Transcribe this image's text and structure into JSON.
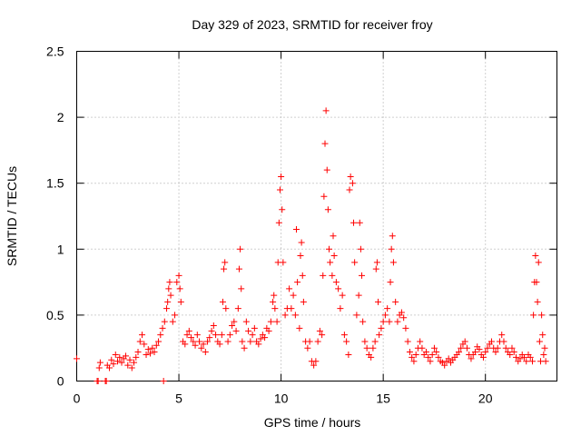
{
  "chart_data": {
    "type": "scatter",
    "title": "Day 329 of 2023, SRMTID for receiver froy",
    "xlabel": "GPS time / hours",
    "ylabel": "SRMTID / TECUs",
    "xlim": [
      0,
      23.5
    ],
    "ylim": [
      0,
      2.5
    ],
    "x_ticks": [
      0,
      5,
      10,
      15,
      20
    ],
    "x_tick_labels": [
      "0",
      "5",
      "10",
      "15",
      "20"
    ],
    "y_ticks": [
      0,
      0.5,
      1,
      1.5,
      2,
      2.5
    ],
    "y_tick_labels": [
      "0",
      "0.5",
      "1",
      "1.5",
      "2",
      "2.5"
    ],
    "grid": true,
    "marker": "+",
    "color": "#ff0000",
    "series": [
      {
        "name": "SRMTID",
        "points": [
          [
            0.0,
            0.17
          ],
          [
            1.0,
            0.0
          ],
          [
            1.05,
            0.0
          ],
          [
            1.1,
            0.1
          ],
          [
            1.15,
            0.14
          ],
          [
            1.4,
            0.0
          ],
          [
            1.45,
            0.0
          ],
          [
            1.5,
            0.12
          ],
          [
            1.6,
            0.1
          ],
          [
            1.7,
            0.16
          ],
          [
            1.8,
            0.13
          ],
          [
            1.9,
            0.2
          ],
          [
            2.0,
            0.15
          ],
          [
            2.1,
            0.18
          ],
          [
            2.2,
            0.14
          ],
          [
            2.3,
            0.17
          ],
          [
            2.4,
            0.19
          ],
          [
            2.5,
            0.12
          ],
          [
            2.6,
            0.16
          ],
          [
            2.7,
            0.1
          ],
          [
            2.8,
            0.14
          ],
          [
            2.9,
            0.18
          ],
          [
            3.0,
            0.22
          ],
          [
            3.1,
            0.3
          ],
          [
            3.2,
            0.35
          ],
          [
            3.3,
            0.28
          ],
          [
            3.4,
            0.2
          ],
          [
            3.5,
            0.24
          ],
          [
            3.6,
            0.21
          ],
          [
            3.7,
            0.25
          ],
          [
            3.8,
            0.22
          ],
          [
            3.9,
            0.27
          ],
          [
            4.0,
            0.3
          ],
          [
            4.1,
            0.35
          ],
          [
            4.2,
            0.4
          ],
          [
            4.25,
            0.0
          ],
          [
            4.3,
            0.45
          ],
          [
            4.4,
            0.55
          ],
          [
            4.45,
            0.6
          ],
          [
            4.5,
            0.7
          ],
          [
            4.55,
            0.75
          ],
          [
            4.6,
            0.65
          ],
          [
            4.7,
            0.45
          ],
          [
            4.8,
            0.5
          ],
          [
            4.9,
            0.75
          ],
          [
            5.0,
            0.8
          ],
          [
            5.05,
            0.7
          ],
          [
            5.1,
            0.6
          ],
          [
            5.2,
            0.3
          ],
          [
            5.3,
            0.28
          ],
          [
            5.4,
            0.35
          ],
          [
            5.5,
            0.38
          ],
          [
            5.6,
            0.33
          ],
          [
            5.7,
            0.3
          ],
          [
            5.8,
            0.27
          ],
          [
            5.9,
            0.35
          ],
          [
            6.0,
            0.3
          ],
          [
            6.1,
            0.25
          ],
          [
            6.2,
            0.28
          ],
          [
            6.3,
            0.22
          ],
          [
            6.4,
            0.3
          ],
          [
            6.5,
            0.33
          ],
          [
            6.6,
            0.38
          ],
          [
            6.7,
            0.42
          ],
          [
            6.8,
            0.35
          ],
          [
            6.9,
            0.3
          ],
          [
            7.0,
            0.28
          ],
          [
            7.1,
            0.35
          ],
          [
            7.15,
            0.6
          ],
          [
            7.2,
            0.85
          ],
          [
            7.25,
            0.9
          ],
          [
            7.3,
            0.55
          ],
          [
            7.4,
            0.3
          ],
          [
            7.5,
            0.35
          ],
          [
            7.6,
            0.42
          ],
          [
            7.7,
            0.45
          ],
          [
            7.8,
            0.38
          ],
          [
            7.9,
            0.55
          ],
          [
            7.95,
            0.85
          ],
          [
            8.0,
            1.0
          ],
          [
            8.05,
            0.7
          ],
          [
            8.1,
            0.3
          ],
          [
            8.2,
            0.25
          ],
          [
            8.3,
            0.45
          ],
          [
            8.4,
            0.38
          ],
          [
            8.5,
            0.3
          ],
          [
            8.6,
            0.35
          ],
          [
            8.7,
            0.4
          ],
          [
            8.8,
            0.3
          ],
          [
            8.9,
            0.28
          ],
          [
            9.0,
            0.32
          ],
          [
            9.1,
            0.35
          ],
          [
            9.2,
            0.33
          ],
          [
            9.3,
            0.4
          ],
          [
            9.4,
            0.38
          ],
          [
            9.5,
            0.45
          ],
          [
            9.6,
            0.6
          ],
          [
            9.65,
            0.65
          ],
          [
            9.7,
            0.55
          ],
          [
            9.8,
            0.45
          ],
          [
            9.85,
            0.9
          ],
          [
            9.9,
            1.2
          ],
          [
            9.95,
            1.45
          ],
          [
            10.0,
            1.55
          ],
          [
            10.05,
            1.3
          ],
          [
            10.1,
            0.9
          ],
          [
            10.2,
            0.5
          ],
          [
            10.3,
            0.55
          ],
          [
            10.4,
            0.7
          ],
          [
            10.5,
            0.55
          ],
          [
            10.6,
            0.65
          ],
          [
            10.7,
            0.5
          ],
          [
            10.75,
            1.15
          ],
          [
            10.8,
            0.75
          ],
          [
            10.9,
            0.4
          ],
          [
            10.95,
            0.95
          ],
          [
            11.0,
            1.05
          ],
          [
            11.05,
            0.8
          ],
          [
            11.1,
            0.6
          ],
          [
            11.2,
            0.3
          ],
          [
            11.3,
            0.25
          ],
          [
            11.4,
            0.3
          ],
          [
            11.5,
            0.15
          ],
          [
            11.6,
            0.12
          ],
          [
            11.7,
            0.15
          ],
          [
            11.8,
            0.3
          ],
          [
            11.9,
            0.38
          ],
          [
            12.0,
            0.35
          ],
          [
            12.05,
            0.8
          ],
          [
            12.1,
            1.4
          ],
          [
            12.15,
            1.8
          ],
          [
            12.2,
            2.05
          ],
          [
            12.25,
            1.6
          ],
          [
            12.3,
            1.3
          ],
          [
            12.35,
            1.0
          ],
          [
            12.4,
            0.9
          ],
          [
            12.5,
            0.8
          ],
          [
            12.55,
            1.1
          ],
          [
            12.6,
            0.95
          ],
          [
            12.7,
            0.75
          ],
          [
            12.8,
            0.7
          ],
          [
            12.9,
            0.55
          ],
          [
            13.0,
            0.65
          ],
          [
            13.1,
            0.35
          ],
          [
            13.2,
            0.3
          ],
          [
            13.3,
            0.2
          ],
          [
            13.35,
            1.45
          ],
          [
            13.4,
            1.55
          ],
          [
            13.5,
            1.5
          ],
          [
            13.55,
            1.2
          ],
          [
            13.6,
            0.9
          ],
          [
            13.7,
            0.5
          ],
          [
            13.8,
            0.65
          ],
          [
            13.85,
            1.2
          ],
          [
            13.9,
            1.0
          ],
          [
            13.95,
            0.8
          ],
          [
            14.0,
            0.45
          ],
          [
            14.1,
            0.3
          ],
          [
            14.2,
            0.25
          ],
          [
            14.3,
            0.2
          ],
          [
            14.4,
            0.18
          ],
          [
            14.5,
            0.25
          ],
          [
            14.6,
            0.3
          ],
          [
            14.65,
            0.85
          ],
          [
            14.7,
            0.9
          ],
          [
            14.75,
            0.6
          ],
          [
            14.8,
            0.35
          ],
          [
            14.9,
            0.4
          ],
          [
            15.0,
            0.45
          ],
          [
            15.1,
            0.5
          ],
          [
            15.2,
            0.55
          ],
          [
            15.3,
            0.45
          ],
          [
            15.35,
            0.75
          ],
          [
            15.4,
            1.0
          ],
          [
            15.45,
            1.1
          ],
          [
            15.5,
            0.9
          ],
          [
            15.6,
            0.6
          ],
          [
            15.7,
            0.45
          ],
          [
            15.8,
            0.5
          ],
          [
            15.9,
            0.52
          ],
          [
            16.0,
            0.48
          ],
          [
            16.1,
            0.4
          ],
          [
            16.2,
            0.3
          ],
          [
            16.3,
            0.22
          ],
          [
            16.4,
            0.18
          ],
          [
            16.5,
            0.15
          ],
          [
            16.6,
            0.2
          ],
          [
            16.7,
            0.25
          ],
          [
            16.8,
            0.3
          ],
          [
            16.9,
            0.25
          ],
          [
            17.0,
            0.2
          ],
          [
            17.1,
            0.22
          ],
          [
            17.2,
            0.18
          ],
          [
            17.3,
            0.15
          ],
          [
            17.4,
            0.2
          ],
          [
            17.5,
            0.25
          ],
          [
            17.6,
            0.22
          ],
          [
            17.7,
            0.18
          ],
          [
            17.8,
            0.15
          ],
          [
            17.9,
            0.14
          ],
          [
            18.0,
            0.12
          ],
          [
            18.1,
            0.15
          ],
          [
            18.2,
            0.17
          ],
          [
            18.3,
            0.14
          ],
          [
            18.4,
            0.16
          ],
          [
            18.5,
            0.18
          ],
          [
            18.6,
            0.2
          ],
          [
            18.7,
            0.22
          ],
          [
            18.8,
            0.25
          ],
          [
            18.9,
            0.28
          ],
          [
            19.0,
            0.3
          ],
          [
            19.1,
            0.25
          ],
          [
            19.2,
            0.2
          ],
          [
            19.3,
            0.17
          ],
          [
            19.4,
            0.2
          ],
          [
            19.5,
            0.22
          ],
          [
            19.6,
            0.26
          ],
          [
            19.7,
            0.24
          ],
          [
            19.8,
            0.2
          ],
          [
            19.9,
            0.18
          ],
          [
            20.0,
            0.22
          ],
          [
            20.1,
            0.25
          ],
          [
            20.2,
            0.28
          ],
          [
            20.3,
            0.3
          ],
          [
            20.4,
            0.25
          ],
          [
            20.5,
            0.22
          ],
          [
            20.6,
            0.25
          ],
          [
            20.7,
            0.3
          ],
          [
            20.8,
            0.35
          ],
          [
            20.9,
            0.3
          ],
          [
            21.0,
            0.25
          ],
          [
            21.1,
            0.22
          ],
          [
            21.2,
            0.2
          ],
          [
            21.3,
            0.25
          ],
          [
            21.4,
            0.22
          ],
          [
            21.5,
            0.18
          ],
          [
            21.6,
            0.15
          ],
          [
            21.7,
            0.17
          ],
          [
            21.8,
            0.2
          ],
          [
            21.9,
            0.18
          ],
          [
            22.0,
            0.15
          ],
          [
            22.1,
            0.2
          ],
          [
            22.2,
            0.18
          ],
          [
            22.3,
            0.15
          ],
          [
            22.35,
            0.5
          ],
          [
            22.4,
            0.75
          ],
          [
            22.45,
            0.95
          ],
          [
            22.5,
            0.75
          ],
          [
            22.55,
            0.6
          ],
          [
            22.6,
            0.9
          ],
          [
            22.65,
            0.3
          ],
          [
            22.7,
            0.15
          ],
          [
            22.75,
            0.5
          ],
          [
            22.8,
            0.35
          ],
          [
            22.85,
            0.2
          ],
          [
            22.9,
            0.25
          ],
          [
            22.95,
            0.15
          ]
        ]
      }
    ]
  }
}
